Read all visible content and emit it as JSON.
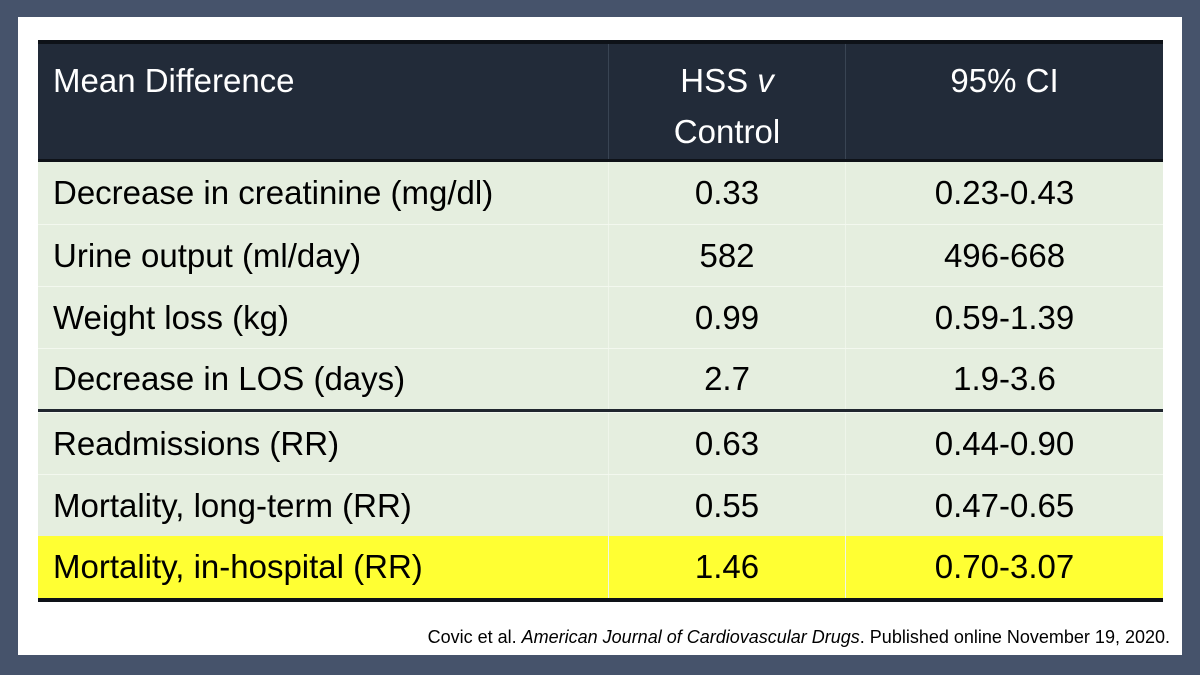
{
  "colors": {
    "frame_bg": "#46536B",
    "slide_bg": "#FFFFFF",
    "header_bg": "#222B39",
    "header_text": "#FFFFFF",
    "row_bg": "#E5EEDF",
    "highlight_bg": "#FFFF33",
    "border": "#0E1218"
  },
  "chart_data": {
    "type": "table",
    "title": "Mean Difference",
    "columns": [
      "Mean Difference",
      "HSS v Control",
      "95% CI"
    ],
    "header": {
      "col1": "Mean Difference",
      "col2_line1_prefix": "HSS ",
      "col2_line1_italic": "v",
      "col2_line2": "Control",
      "col3": "95% CI"
    },
    "rows": [
      {
        "label": "Decrease in creatinine (mg/dl)",
        "value": "0.33",
        "ci": "0.23-0.43"
      },
      {
        "label": "Urine output (ml/day)",
        "value": "582",
        "ci": "496-668"
      },
      {
        "label": "Weight loss (kg)",
        "value": "0.99",
        "ci": "0.59-1.39"
      },
      {
        "label": "Decrease in LOS (days)",
        "value": "2.7",
        "ci": "1.9-3.6"
      },
      {
        "label": "Readmissions (RR)",
        "value": "0.63",
        "ci": "0.44-0.90"
      },
      {
        "label": "Mortality, long-term (RR)",
        "value": "0.55",
        "ci": "0.47-0.65"
      },
      {
        "label": "Mortality, in-hospital (RR)",
        "value": "1.46",
        "ci": "0.70-3.07"
      }
    ],
    "separator_after_row": "Decrease in LOS (days)",
    "highlighted_row": "Mortality, in-hospital (RR)",
    "layout_hints": {
      "grid": "faint light gridlines",
      "legend": "none"
    }
  },
  "citation": {
    "prefix": "Covic et al. ",
    "journal": "American Journal of Cardiovascular Drugs",
    "suffix": ". Published online November 19, 2020."
  }
}
